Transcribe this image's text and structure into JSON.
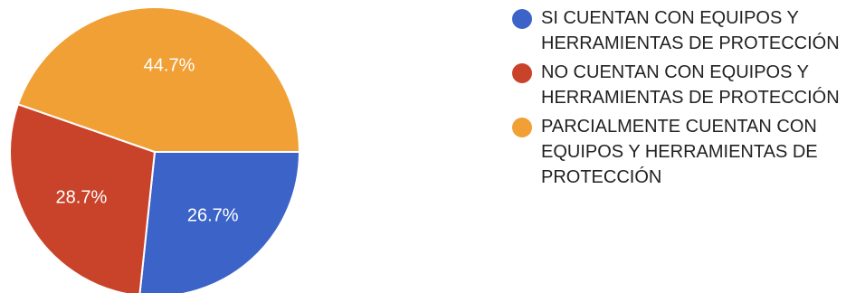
{
  "chart_data": {
    "type": "pie",
    "slices": [
      {
        "label": "SI CUENTAN CON EQUIPOS Y HERRAMIENTAS DE PROTECCIÓN",
        "value": 26.7,
        "display": "26.7%",
        "color": "#3c64c8"
      },
      {
        "label": "NO CUENTAN CON EQUIPOS Y HERRAMIENTAS DE PROTECCIÓN",
        "value": 28.7,
        "display": "28.7%",
        "color": "#c9432a"
      },
      {
        "label": "PARCIALMENTE CUENTAN CON EQUIPOS Y HERRAMIENTAS DE PROTECCIÓN",
        "value": 44.7,
        "display": "44.7%",
        "color": "#f0a035"
      }
    ],
    "legend_position": "right",
    "start": "3 o'clock, clockwise"
  }
}
